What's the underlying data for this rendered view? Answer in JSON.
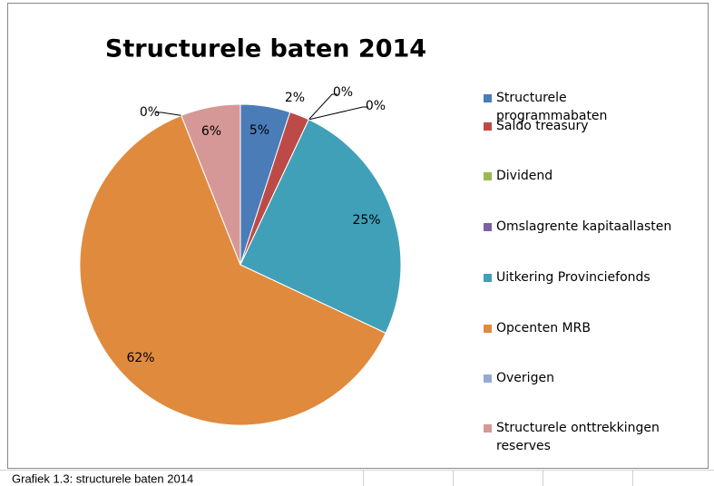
{
  "chart_data": {
    "type": "pie",
    "title": "Structurele baten 2014",
    "categories": [
      "Structurele programmabaten",
      "Saldo treasury",
      "Dividend",
      "Omslagrente kapitaallasten",
      "Uitkering Provinciefonds",
      "Opcenten MRB",
      "Overigen",
      "Structurele onttrekkingen reserves"
    ],
    "values": [
      5,
      2,
      0,
      0,
      25,
      62,
      0,
      6
    ],
    "value_labels": [
      "5%",
      "2%",
      "0%",
      "0%",
      "25%",
      "62%",
      "0%",
      "6%"
    ],
    "colors": [
      "#4a7cb8",
      "#bc4b48",
      "#98b954",
      "#7d60a0",
      "#40a0b8",
      "#e08a3e",
      "#93aad3",
      "#d69896"
    ],
    "legend": "right"
  },
  "caption": "Grafiek 1.3: structurele baten 2014"
}
